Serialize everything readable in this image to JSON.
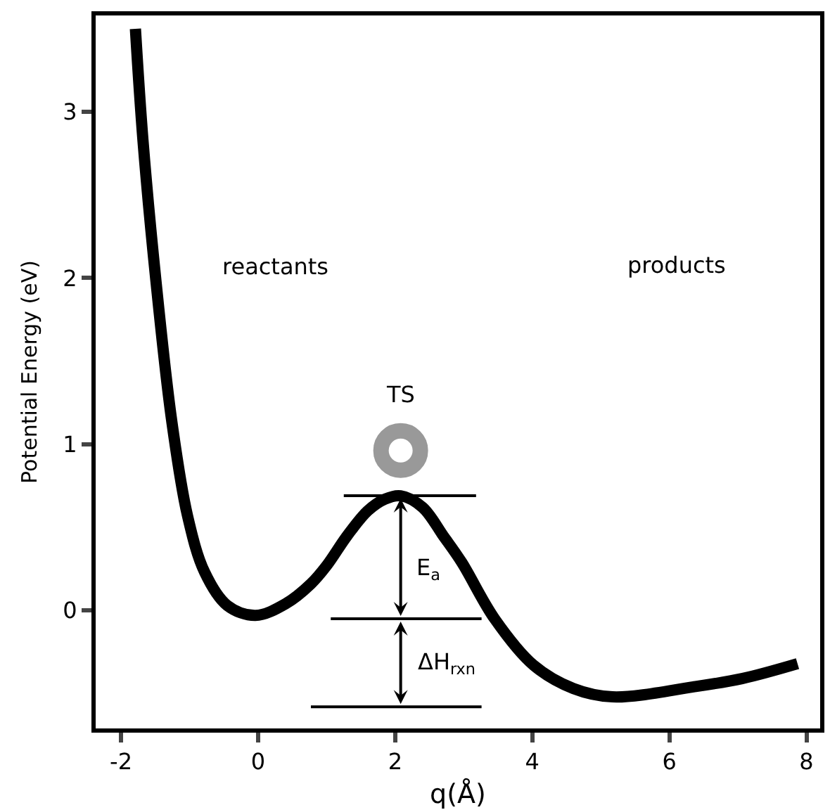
{
  "chart_data": {
    "type": "line",
    "xlabel": "q(Å)",
    "ylabel": "Potential Energy (eV)",
    "xlim": [
      -2.37,
      8.2
    ],
    "xticks": [
      -2,
      0,
      2,
      4,
      6,
      8
    ],
    "ylim": [
      -0.71,
      3.58
    ],
    "yticks": [
      0,
      1,
      2,
      3
    ],
    "grid": false,
    "marker": "none",
    "line_style": "solid",
    "series": [
      {
        "color": "#000000",
        "x": [
          -1.79,
          -1.68,
          -1.49,
          -1.26,
          -1.03,
          -0.78,
          -0.45,
          -0.04,
          0.4,
          0.77,
          1.0,
          1.3,
          1.6,
          1.85,
          2.08,
          2.4,
          2.7,
          2.97,
          3.45,
          4.02,
          4.6,
          5.17,
          6.35,
          7.06,
          7.87
        ],
        "values": [
          3.5,
          2.83,
          1.98,
          1.14,
          0.57,
          0.23,
          0.03,
          -0.03,
          0.04,
          0.16,
          0.27,
          0.45,
          0.6,
          0.67,
          0.69,
          0.62,
          0.45,
          0.29,
          -0.05,
          -0.33,
          -0.47,
          -0.52,
          -0.46,
          -0.41,
          -0.32
        ]
      },
      {
        "color": "#000000",
        "x": [
          1.25,
          3.18
        ],
        "values": [
          0.69,
          0.69
        ]
      },
      {
        "color": "#000000",
        "x": [
          1.06,
          3.26
        ],
        "values": [
          -0.05,
          -0.05
        ]
      },
      {
        "color": "#000000",
        "x": [
          0.77,
          3.26
        ],
        "values": [
          -0.58,
          -0.58
        ]
      }
    ],
    "annotations": [
      "reactants",
      "products",
      "TS",
      "E$_{a}$",
      "ΔH$_{rxn}$"
    ]
  }
}
